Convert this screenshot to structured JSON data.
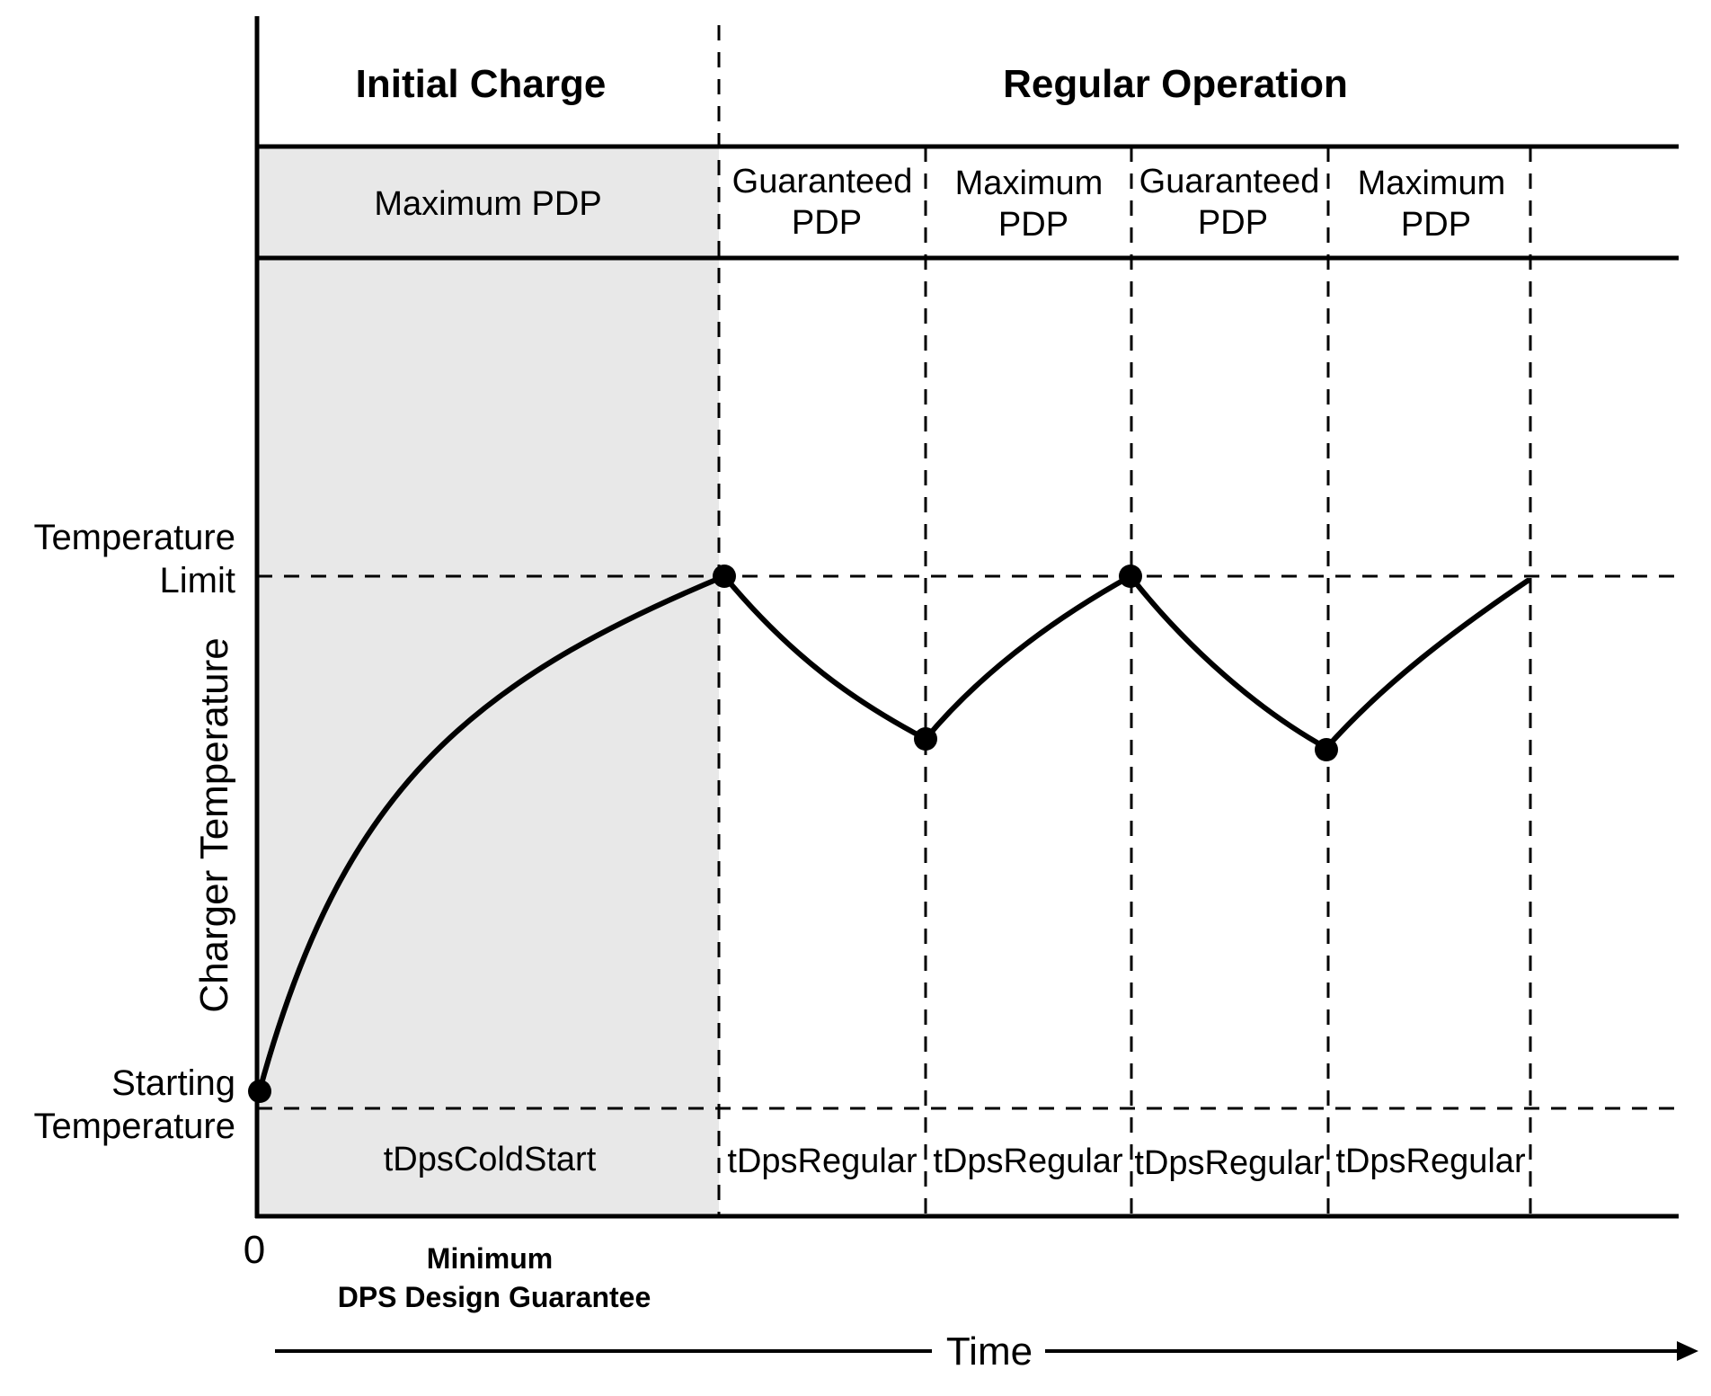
{
  "phases": {
    "initial": "Initial Charge",
    "regular": "Regular Operation"
  },
  "modes": {
    "initial": "Maximum PDP",
    "segments": [
      [
        "Guaranteed",
        "PDP"
      ],
      [
        "Maximum",
        "PDP"
      ],
      [
        "Guaranteed",
        "PDP"
      ],
      [
        "Maximum",
        "PDP"
      ]
    ]
  },
  "durations": {
    "initial": "tDpsColdStart",
    "segments": [
      "tDpsRegular",
      "tDpsRegular",
      "tDpsRegular",
      "tDpsRegular"
    ]
  },
  "y_axis": {
    "title": "Charger Temperature",
    "limit": [
      "Temperature",
      "Limit"
    ],
    "start": [
      "Starting",
      "Temperature"
    ]
  },
  "x_axis": {
    "title": "Time",
    "origin": "0"
  },
  "guarantee": [
    "Minimum",
    "DPS Design Guarantee"
  ],
  "colors": {
    "shade": "#e8e8e8",
    "line": "#000000"
  }
}
